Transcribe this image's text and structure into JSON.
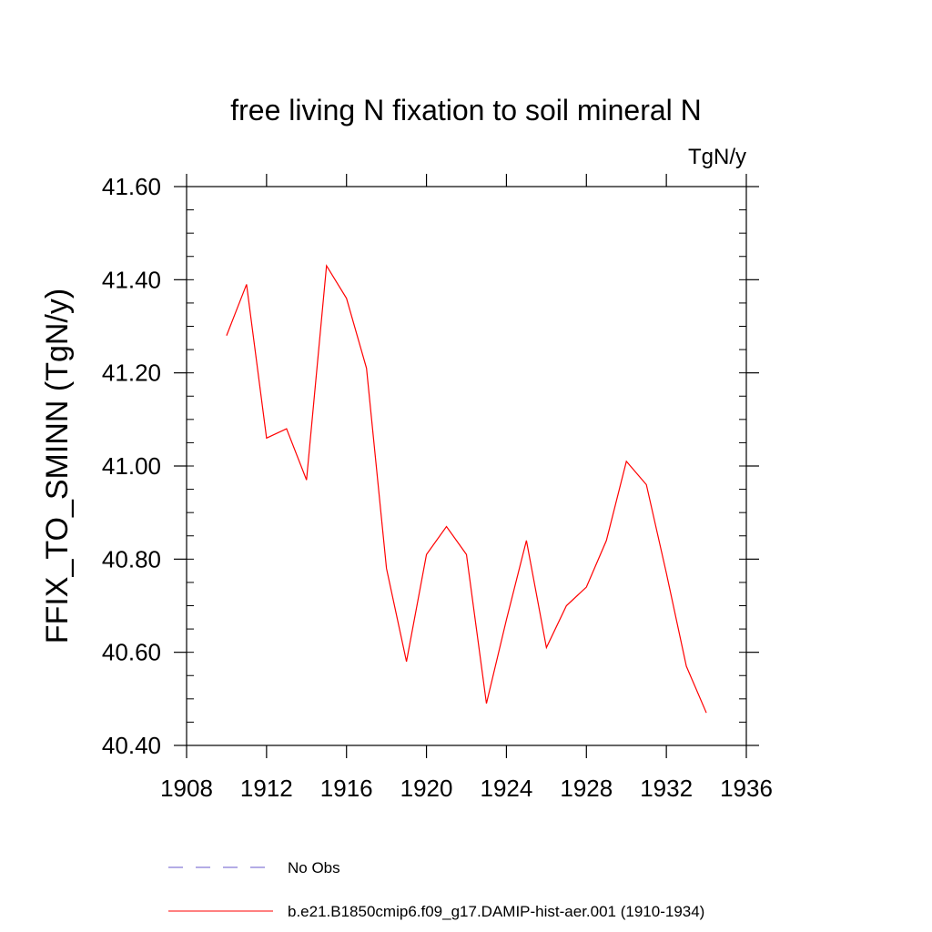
{
  "chart_data": {
    "type": "line",
    "title": "free living N fixation to soil mineral N",
    "units": "TgN/y",
    "ylabel": "FFIX_TO_SMINN  (TgN/y)",
    "xlabel": "",
    "xlim": [
      1908,
      1936
    ],
    "ylim": [
      40.4,
      41.6
    ],
    "x_ticks": [
      "1908",
      "1912",
      "1916",
      "1920",
      "1924",
      "1928",
      "1932",
      "1936"
    ],
    "y_ticks": [
      "40.40",
      "40.60",
      "40.80",
      "41.00",
      "41.20",
      "41.40",
      "41.60"
    ],
    "grid": false,
    "legend_position": "bottom",
    "series": [
      {
        "name": "No Obs",
        "color": "#6a5acd",
        "dash": "dashed",
        "x": [],
        "values": []
      },
      {
        "name": "b.e21.B1850cmip6.f09_g17.DAMIP-hist-aer.001 (1910-1934)",
        "color": "#ff0000",
        "dash": "solid",
        "x": [
          1910,
          1911,
          1912,
          1913,
          1914,
          1915,
          1916,
          1917,
          1918,
          1919,
          1920,
          1921,
          1922,
          1923,
          1924,
          1925,
          1926,
          1927,
          1928,
          1929,
          1930,
          1931,
          1932,
          1933,
          1934
        ],
        "values": [
          41.28,
          41.39,
          41.06,
          41.08,
          40.97,
          41.43,
          41.36,
          41.21,
          40.78,
          40.58,
          40.81,
          40.87,
          40.81,
          40.49,
          40.67,
          40.84,
          40.61,
          40.7,
          40.74,
          40.84,
          41.01,
          40.96,
          40.77,
          40.57,
          40.47
        ]
      }
    ]
  }
}
